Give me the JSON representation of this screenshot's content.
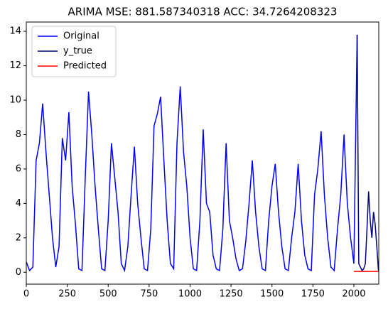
{
  "chart_data": {
    "type": "line",
    "title": "ARIMA MSE: 881.587340318 ACC: 34.7264208323",
    "xlim": [
      0,
      2152
    ],
    "xticks": [
      0,
      250,
      500,
      750,
      1000,
      1250,
      1500,
      1750,
      2000
    ],
    "ylim": [
      -0.69,
      14.54
    ],
    "yticks": [
      0,
      2,
      4,
      6,
      8,
      10,
      12,
      14
    ],
    "legend": "upper left",
    "series": [
      {
        "name": "Original",
        "color": "blue",
        "x": [
          0,
          20,
          40,
          60,
          80,
          100,
          120,
          140,
          160,
          180,
          200,
          220,
          240,
          260,
          280,
          300,
          320,
          340,
          360,
          380,
          400,
          420,
          440,
          460,
          480,
          500,
          520,
          540,
          560,
          580,
          600,
          620,
          640,
          660,
          680,
          700,
          720,
          740,
          760,
          780,
          800,
          820,
          840,
          860,
          880,
          900,
          920,
          940,
          960,
          980,
          1000,
          1020,
          1040,
          1060,
          1080,
          1100,
          1120,
          1140,
          1160,
          1180,
          1200,
          1220,
          1240,
          1260,
          1280,
          1300,
          1320,
          1340,
          1360,
          1380,
          1400,
          1420,
          1440,
          1460,
          1480,
          1500,
          1520,
          1540,
          1560,
          1580,
          1600,
          1620,
          1640,
          1660,
          1680,
          1700,
          1720,
          1740,
          1760,
          1780,
          1800,
          1820,
          1840,
          1860,
          1880,
          1900,
          1920,
          1940,
          1960,
          1980,
          2000,
          2020
        ],
        "values": [
          0.6,
          0.1,
          0.3,
          6.5,
          7.5,
          9.8,
          7.0,
          4.5,
          2.0,
          0.3,
          1.5,
          7.8,
          6.5,
          9.3,
          5.0,
          2.8,
          0.2,
          0.1,
          5.5,
          10.5,
          8.0,
          5.0,
          2.5,
          0.2,
          0.1,
          3.0,
          7.5,
          5.5,
          3.5,
          0.5,
          0.1,
          1.5,
          4.5,
          7.3,
          4.0,
          2.0,
          0.2,
          0.1,
          2.5,
          8.5,
          9.2,
          10.2,
          6.5,
          3.0,
          0.5,
          0.2,
          7.5,
          10.8,
          7.0,
          5.0,
          2.0,
          0.2,
          0.1,
          3.0,
          8.3,
          4.0,
          3.5,
          1.0,
          0.2,
          0.1,
          2.5,
          7.5,
          3.0,
          2.0,
          0.8,
          0.1,
          0.2,
          1.8,
          4.0,
          6.5,
          3.5,
          1.5,
          0.2,
          0.1,
          3.0,
          5.0,
          6.3,
          3.5,
          1.5,
          0.2,
          0.1,
          2.0,
          3.5,
          6.3,
          3.0,
          1.0,
          0.2,
          0.1,
          4.5,
          6.0,
          8.2,
          4.5,
          2.0,
          0.3,
          0.1,
          2.5,
          4.5,
          8.0,
          4.0,
          2.0,
          0.5,
          13.8
        ]
      },
      {
        "name": "y_true",
        "color": "navy",
        "x": [
          2020,
          2030,
          2040,
          2050,
          2060,
          2070,
          2080,
          2090,
          2100,
          2110,
          2120,
          2130,
          2140,
          2150
        ],
        "values": [
          13.8,
          0.5,
          0.3,
          0.1,
          0.2,
          0.5,
          2.5,
          4.7,
          3.0,
          2.0,
          3.5,
          2.8,
          1.5,
          0.1
        ]
      },
      {
        "name": "Predicted",
        "color": "red",
        "x": [
          2000,
          2150
        ],
        "values": [
          0.05,
          0.05
        ]
      }
    ]
  }
}
